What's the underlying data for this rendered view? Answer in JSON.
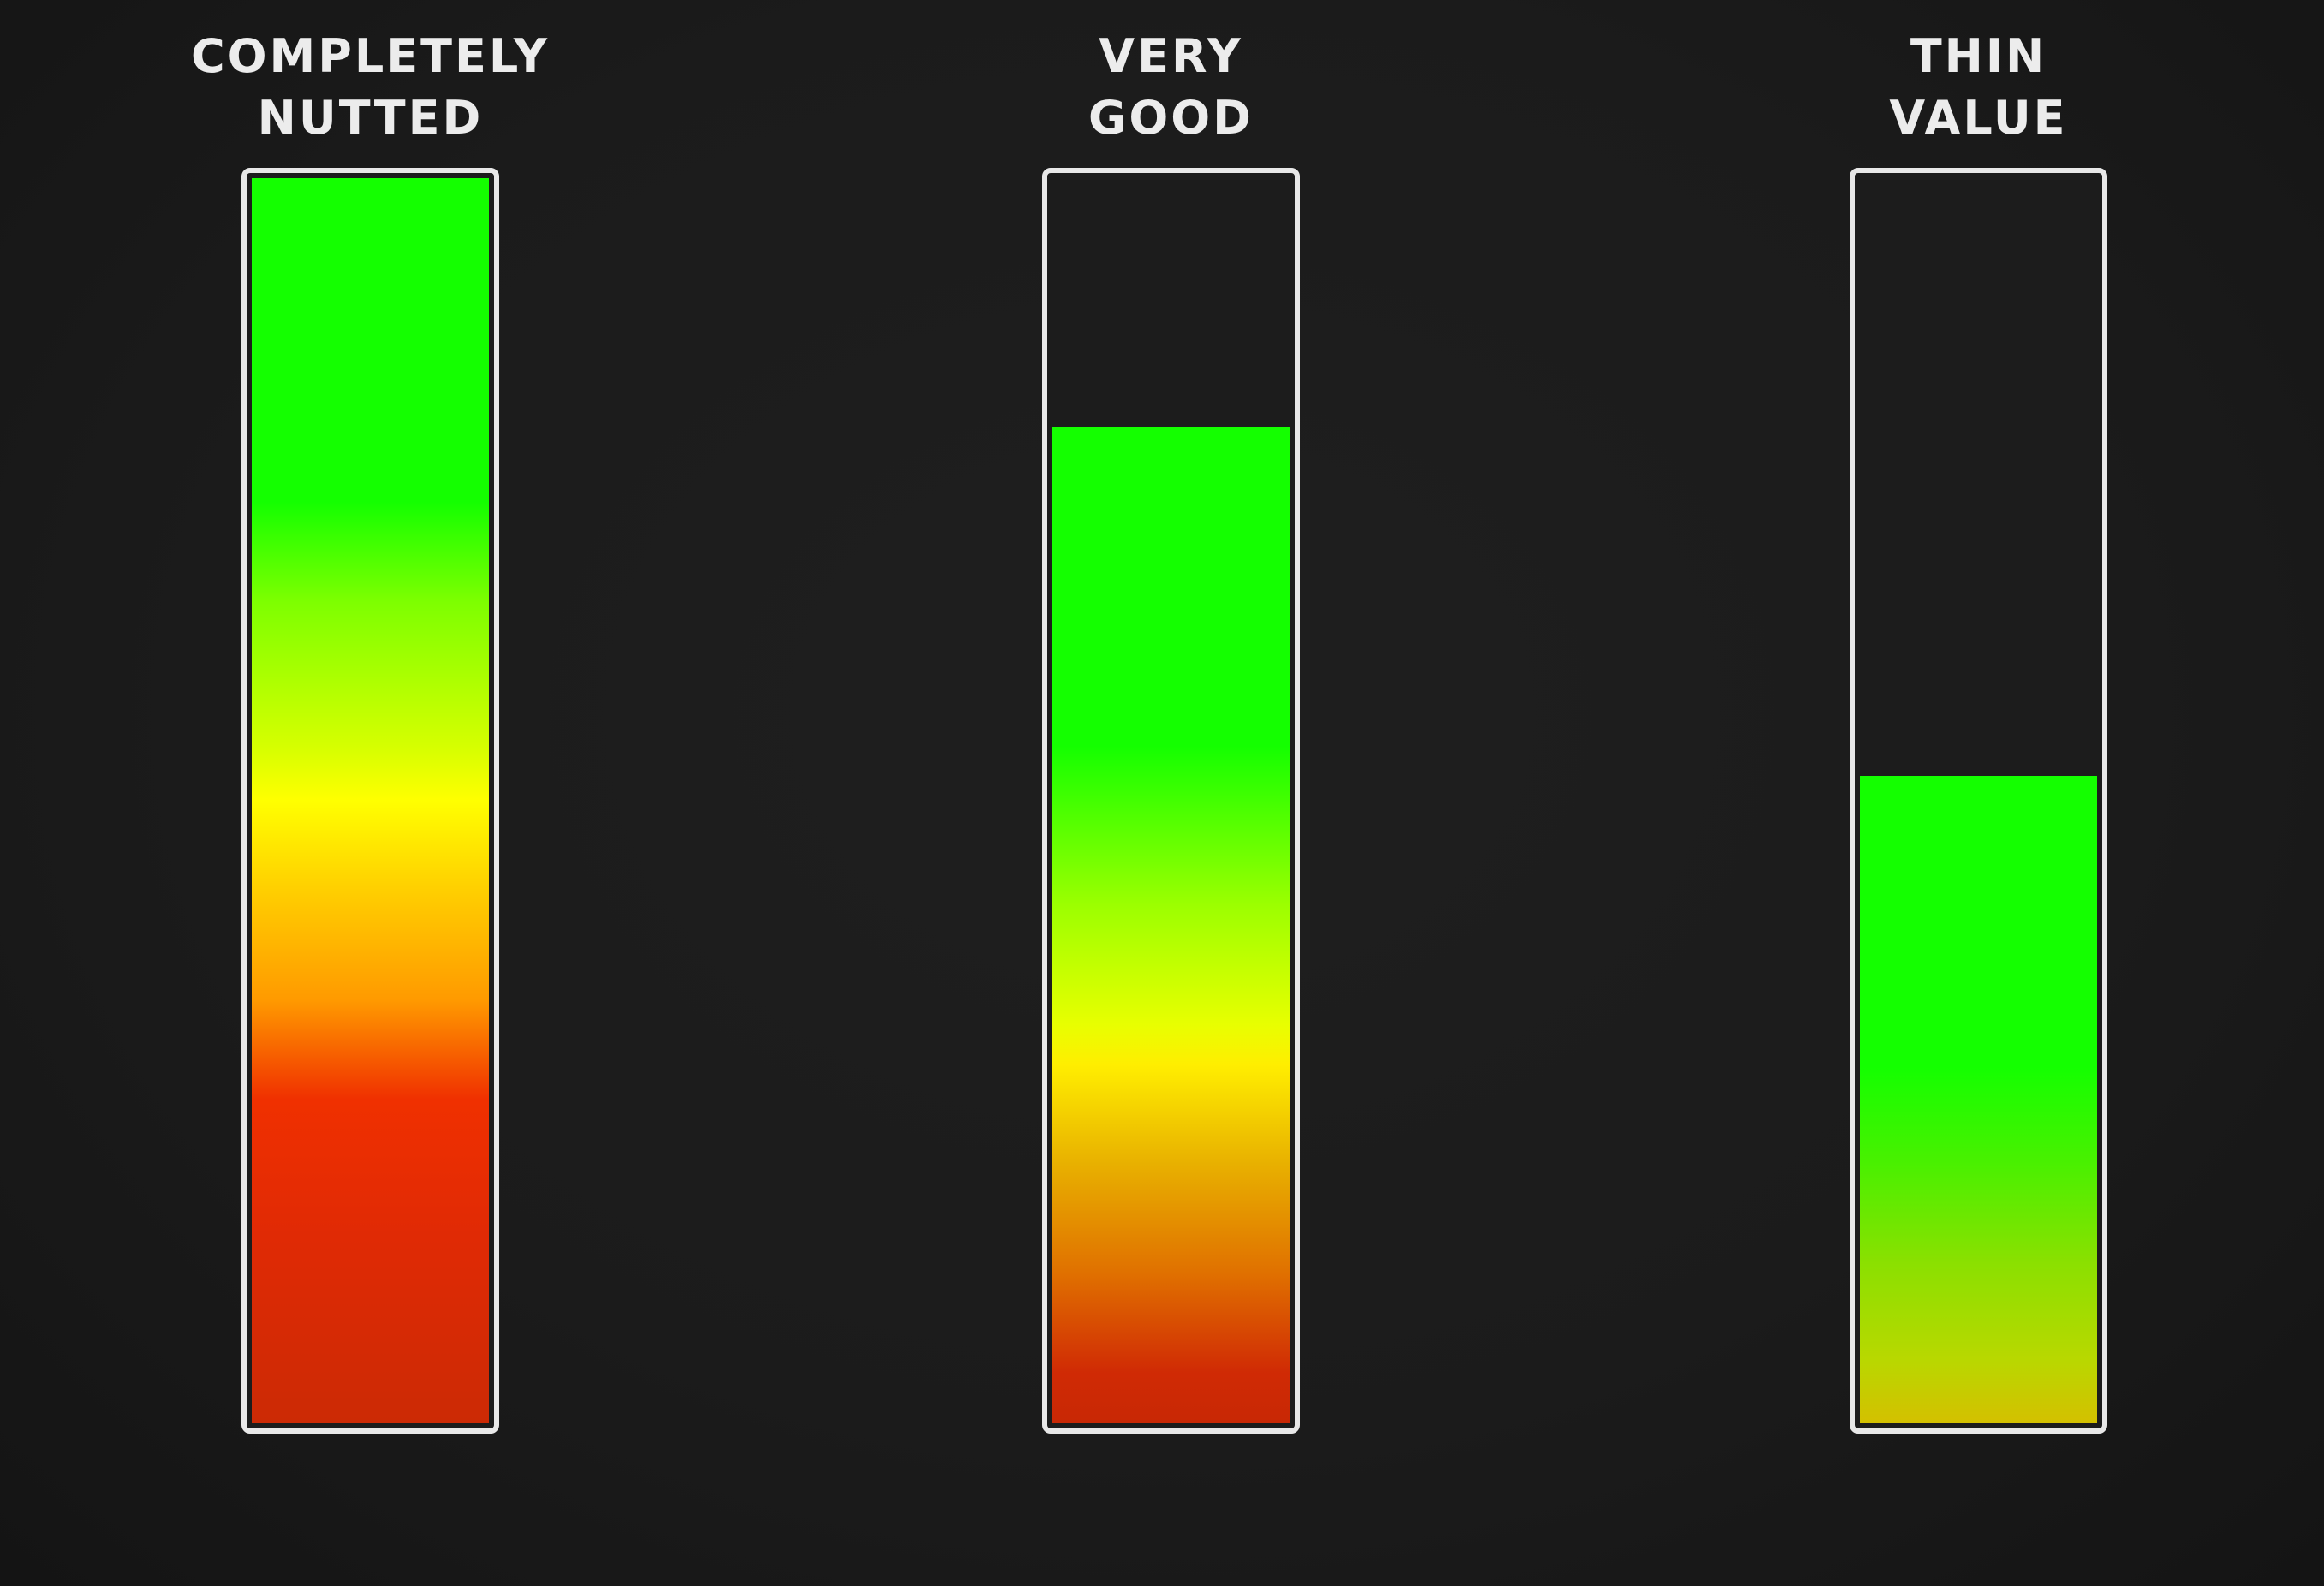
{
  "chart_data": {
    "type": "bar",
    "categories": [
      "COMPLETELY NUTTED",
      "VERY GOOD",
      "THIN VALUE"
    ],
    "values": [
      100,
      80,
      52
    ],
    "ylim": [
      0,
      100
    ],
    "grid": false,
    "labels": [
      [
        "COMPLETELY",
        "NUTTED"
      ],
      [
        "VERY",
        "GOOD"
      ],
      [
        "THIN",
        "VALUE"
      ]
    ],
    "colors": {
      "green": "#14ff00",
      "yellow": "#ffff00",
      "orange": "#ff9a00",
      "red": "#f03000",
      "dark_red": "#cc2a05",
      "frame": "#e8e8e8",
      "background": "#1c1c1c"
    }
  }
}
